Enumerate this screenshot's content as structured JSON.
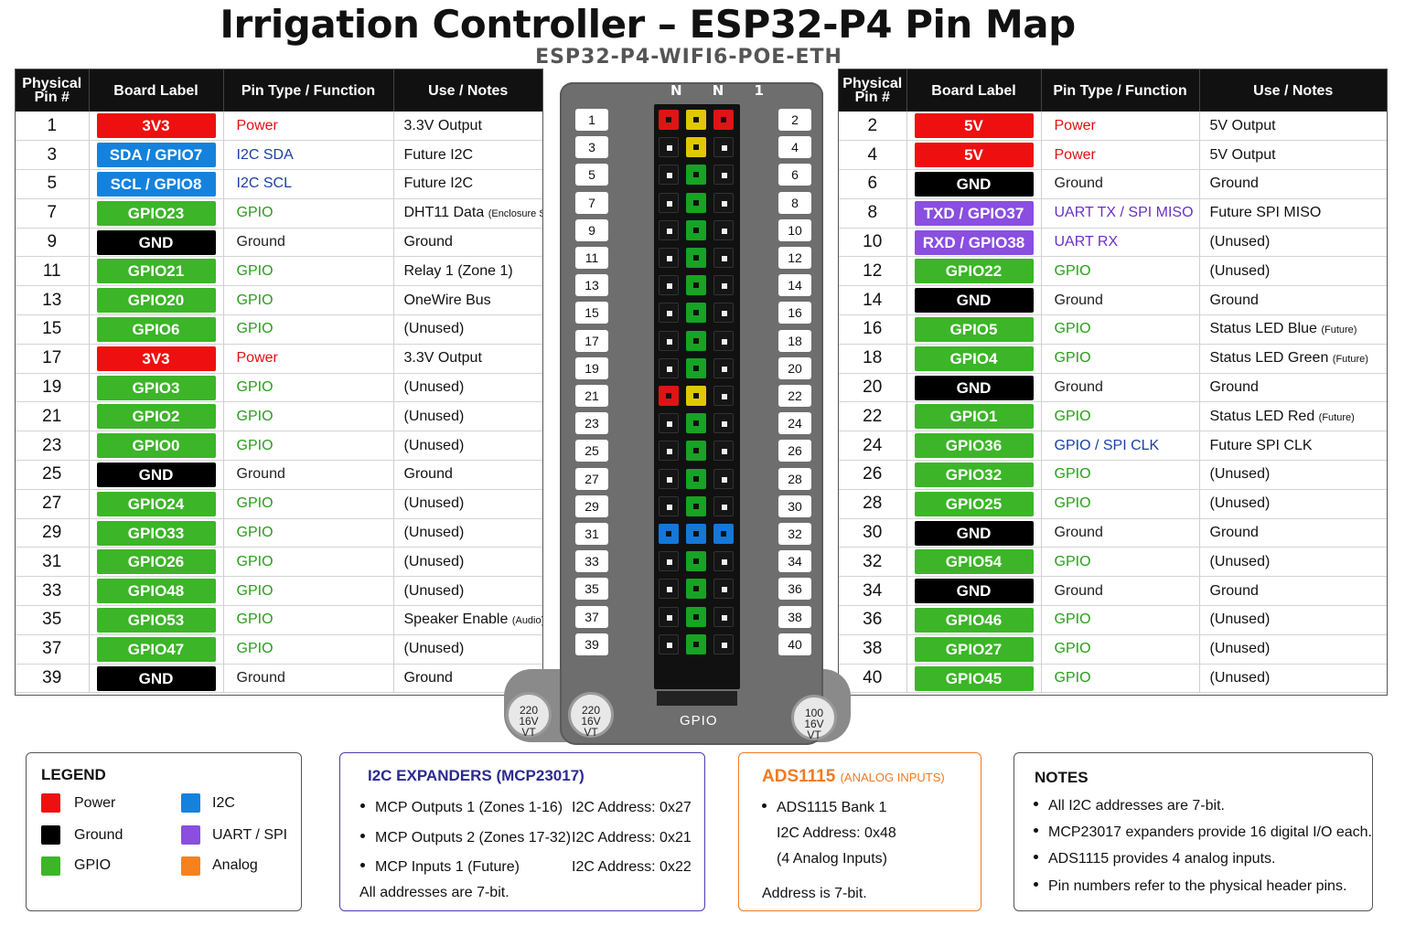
{
  "title": "Irrigation Controller – ESP32-P4 Pin Map",
  "subtitle": "ESP32-P4-WIFI6-POE-ETH",
  "columns": {
    "left": [
      "Physical Pin #",
      "Board Label",
      "Pin Type / Function",
      "Use / Notes"
    ],
    "right": [
      "Physical Pin #",
      "Board Label",
      "Pin Type / Function",
      "Use / Notes"
    ]
  },
  "left_pins": [
    {
      "pin": "1",
      "label": "3V3",
      "type": "Power",
      "kind": "power",
      "note": "3.3V Output",
      "note_small": ""
    },
    {
      "pin": "3",
      "label": "SDA / GPIO7",
      "type": "I2C SDA",
      "kind": "i2c",
      "note": "Future I2C",
      "note_small": ""
    },
    {
      "pin": "5",
      "label": "SCL / GPIO8",
      "type": "I2C SCL",
      "kind": "i2c",
      "note": "Future I2C",
      "note_small": ""
    },
    {
      "pin": "7",
      "label": "GPIO23",
      "type": "GPIO",
      "kind": "gpio",
      "note": "DHT11 Data ",
      "note_small": "(Enclosure Sensor)"
    },
    {
      "pin": "9",
      "label": "GND",
      "type": "Ground",
      "kind": "ground",
      "note": "Ground",
      "note_small": ""
    },
    {
      "pin": "11",
      "label": "GPIO21",
      "type": "GPIO",
      "kind": "gpio",
      "note": "Relay 1 (Zone 1)",
      "note_small": ""
    },
    {
      "pin": "13",
      "label": "GPIO20",
      "type": "GPIO",
      "kind": "gpio",
      "note": "OneWire Bus",
      "note_small": ""
    },
    {
      "pin": "15",
      "label": "GPIO6",
      "type": "GPIO",
      "kind": "gpio",
      "note": "(Unused)",
      "note_small": ""
    },
    {
      "pin": "17",
      "label": "3V3",
      "type": "Power",
      "kind": "power",
      "note": "3.3V Output",
      "note_small": ""
    },
    {
      "pin": "19",
      "label": "GPIO3",
      "type": "GPIO",
      "kind": "gpio",
      "note": "(Unused)",
      "note_small": ""
    },
    {
      "pin": "21",
      "label": "GPIO2",
      "type": "GPIO",
      "kind": "gpio",
      "note": "(Unused)",
      "note_small": ""
    },
    {
      "pin": "23",
      "label": "GPIO0",
      "type": "GPIO",
      "kind": "gpio",
      "note": "(Unused)",
      "note_small": ""
    },
    {
      "pin": "25",
      "label": "GND",
      "type": "Ground",
      "kind": "ground",
      "note": "Ground",
      "note_small": ""
    },
    {
      "pin": "27",
      "label": "GPIO24",
      "type": "GPIO",
      "kind": "gpio",
      "note": "(Unused)",
      "note_small": ""
    },
    {
      "pin": "29",
      "label": "GPIO33",
      "type": "GPIO",
      "kind": "gpio",
      "note": "(Unused)",
      "note_small": ""
    },
    {
      "pin": "31",
      "label": "GPIO26",
      "type": "GPIO",
      "kind": "gpio",
      "note": "(Unused)",
      "note_small": ""
    },
    {
      "pin": "33",
      "label": "GPIO48",
      "type": "GPIO",
      "kind": "gpio",
      "note": "(Unused)",
      "note_small": ""
    },
    {
      "pin": "35",
      "label": "GPIO53",
      "type": "GPIO",
      "kind": "gpio",
      "note": "Speaker Enable ",
      "note_small": "(Audio)"
    },
    {
      "pin": "37",
      "label": "GPIO47",
      "type": "GPIO",
      "kind": "gpio",
      "note": "(Unused)",
      "note_small": ""
    },
    {
      "pin": "39",
      "label": "GND",
      "type": "Ground",
      "kind": "ground",
      "note": "Ground",
      "note_small": ""
    }
  ],
  "right_pins": [
    {
      "pin": "2",
      "label": "5V",
      "type": "Power",
      "kind": "power",
      "note": "5V Output",
      "note_small": ""
    },
    {
      "pin": "4",
      "label": "5V",
      "type": "Power",
      "kind": "power",
      "note": "5V Output",
      "note_small": ""
    },
    {
      "pin": "6",
      "label": "GND",
      "type": "Ground",
      "kind": "ground",
      "note": "Ground",
      "note_small": ""
    },
    {
      "pin": "8",
      "label": "TXD / GPIO37",
      "type": "UART TX / SPI MISO",
      "kind": "uart",
      "note": "Future SPI MISO",
      "note_small": ""
    },
    {
      "pin": "10",
      "label": "RXD / GPIO38",
      "type": "UART RX",
      "kind": "uart",
      "note": "(Unused)",
      "note_small": ""
    },
    {
      "pin": "12",
      "label": "GPIO22",
      "type": "GPIO",
      "kind": "gpio",
      "note": "(Unused)",
      "note_small": ""
    },
    {
      "pin": "14",
      "label": "GND",
      "type": "Ground",
      "kind": "ground",
      "note": "Ground",
      "note_small": ""
    },
    {
      "pin": "16",
      "label": "GPIO5",
      "type": "GPIO",
      "kind": "gpio",
      "note": "Status LED Blue ",
      "note_small": "(Future)"
    },
    {
      "pin": "18",
      "label": "GPIO4",
      "type": "GPIO",
      "kind": "gpio",
      "note": "Status LED Green ",
      "note_small": "(Future)"
    },
    {
      "pin": "20",
      "label": "GND",
      "type": "Ground",
      "kind": "ground",
      "note": "Ground",
      "note_small": ""
    },
    {
      "pin": "22",
      "label": "GPIO1",
      "type": "GPIO",
      "kind": "gpio",
      "note": "Status LED Red ",
      "note_small": "(Future)"
    },
    {
      "pin": "24",
      "label": "GPIO36",
      "type": "GPIO / SPI CLK",
      "kind": "gpiospi",
      "note": "Future SPI CLK",
      "note_small": ""
    },
    {
      "pin": "26",
      "label": "GPIO32",
      "type": "GPIO",
      "kind": "gpio",
      "note": "(Unused)",
      "note_small": ""
    },
    {
      "pin": "28",
      "label": "GPIO25",
      "type": "GPIO",
      "kind": "gpio",
      "note": "(Unused)",
      "note_small": ""
    },
    {
      "pin": "30",
      "label": "GND",
      "type": "Ground",
      "kind": "ground",
      "note": "Ground",
      "note_small": ""
    },
    {
      "pin": "32",
      "label": "GPIO54",
      "type": "GPIO",
      "kind": "gpio",
      "note": "(Unused)",
      "note_small": ""
    },
    {
      "pin": "34",
      "label": "GND",
      "type": "Ground",
      "kind": "ground",
      "note": "Ground",
      "note_small": ""
    },
    {
      "pin": "36",
      "label": "GPIO46",
      "type": "GPIO",
      "kind": "gpio",
      "note": "(Unused)",
      "note_small": ""
    },
    {
      "pin": "38",
      "label": "GPIO27",
      "type": "GPIO",
      "kind": "gpio",
      "note": "(Unused)",
      "note_small": ""
    },
    {
      "pin": "40",
      "label": "GPIO45",
      "type": "GPIO",
      "kind": "gpio",
      "note": "(Unused)",
      "note_small": ""
    }
  ],
  "board": {
    "top_label": "N N 1",
    "label": "GPIO",
    "caps": [
      {
        "lines": [
          "220",
          "16V",
          "VT"
        ]
      },
      {
        "lines": [
          "220",
          "16V",
          "VT"
        ]
      },
      {
        "lines": [
          "100",
          "16V",
          "VT"
        ]
      }
    ],
    "header_rows": [
      [
        "red",
        "yellow",
        "red"
      ],
      [
        "black",
        "yellow",
        "black"
      ],
      [
        "black",
        "green",
        "black"
      ],
      [
        "black",
        "green",
        "black"
      ],
      [
        "black",
        "green",
        "black"
      ],
      [
        "black",
        "green",
        "black"
      ],
      [
        "black",
        "green",
        "black"
      ],
      [
        "black",
        "green",
        "black"
      ],
      [
        "black",
        "green",
        "black"
      ],
      [
        "black",
        "green",
        "black"
      ],
      [
        "red",
        "yellow",
        "black"
      ],
      [
        "black",
        "green",
        "black"
      ],
      [
        "black",
        "green",
        "black"
      ],
      [
        "black",
        "green",
        "black"
      ],
      [
        "black",
        "green",
        "black"
      ],
      [
        "blue",
        "blue",
        "blue"
      ],
      [
        "black",
        "green",
        "black"
      ],
      [
        "black",
        "green",
        "black"
      ],
      [
        "black",
        "green",
        "black"
      ],
      [
        "black",
        "green",
        "black"
      ]
    ],
    "colors": {
      "red": "#dd1515",
      "yellow": "#e0c800",
      "green": "#17a323",
      "blue": "#1577d8",
      "black": "#151515"
    }
  },
  "legend": {
    "title": "LEGEND",
    "items": [
      {
        "label": "Power",
        "color": "#ee1010"
      },
      {
        "label": "Ground",
        "color": "#000000"
      },
      {
        "label": "GPIO",
        "color": "#3cb528"
      },
      {
        "label": "I2C",
        "color": "#1482dc"
      },
      {
        "label": "UART / SPI",
        "color": "#8a4ee0"
      },
      {
        "label": "Analog",
        "color": "#f5821f"
      }
    ]
  },
  "i2c_expanders": {
    "title": "I2C EXPANDERS (MCP23017)",
    "items": [
      {
        "name": "MCP Outputs 1 (Zones 1-16)",
        "address": "I2C Address:  0x27"
      },
      {
        "name": "MCP Outputs 2 (Zones 17-32)",
        "address": "I2C Address:  0x21"
      },
      {
        "name": "MCP Inputs 1 (Future)",
        "address": "I2C Address:  0x22"
      }
    ],
    "footer": "All addresses are 7-bit."
  },
  "ads1115": {
    "title": "ADS1115",
    "title_small": "(ANALOG INPUTS)",
    "bank": "ADS1115 Bank 1",
    "address": "I2C Address:  0x48",
    "inputs": "(4 Analog Inputs)",
    "footer": "Address is 7-bit."
  },
  "notes": {
    "title": "NOTES",
    "items": [
      "All I2C addresses are 7-bit.",
      "MCP23017 expanders provide 16 digital I/O each.",
      "ADS1115 provides 4 analog inputs.",
      "Pin numbers refer to the physical header pins."
    ]
  }
}
